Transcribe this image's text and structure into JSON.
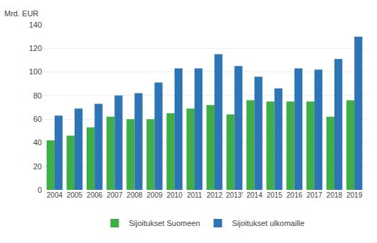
{
  "chart_data": {
    "type": "bar",
    "ylabel": "Mrd. EUR",
    "categories": [
      "2004",
      "2005",
      "2006",
      "2007",
      "2008",
      "2009",
      "2010",
      "2011",
      "2012",
      "2013'",
      "2014",
      "2015",
      "2016",
      "2017",
      "2018",
      "2019"
    ],
    "series": [
      {
        "name": "Sijoitukset Suomeen",
        "color": "#3fae49",
        "values": [
          42,
          46,
          53,
          62,
          60,
          60,
          65,
          69,
          72,
          64,
          76,
          75,
          75,
          75,
          62,
          76
        ]
      },
      {
        "name": "Sijoitukset ulkomaille",
        "color": "#2e75b6",
        "values": [
          63,
          69,
          73,
          80,
          82,
          91,
          103,
          103,
          115,
          105,
          96,
          86,
          103,
          102,
          111,
          130
        ]
      }
    ],
    "ylim": [
      0,
      140
    ],
    "yticks": [
      0,
      20,
      40,
      60,
      80,
      100,
      120,
      140
    ],
    "grid": true,
    "legend": "bottom"
  }
}
